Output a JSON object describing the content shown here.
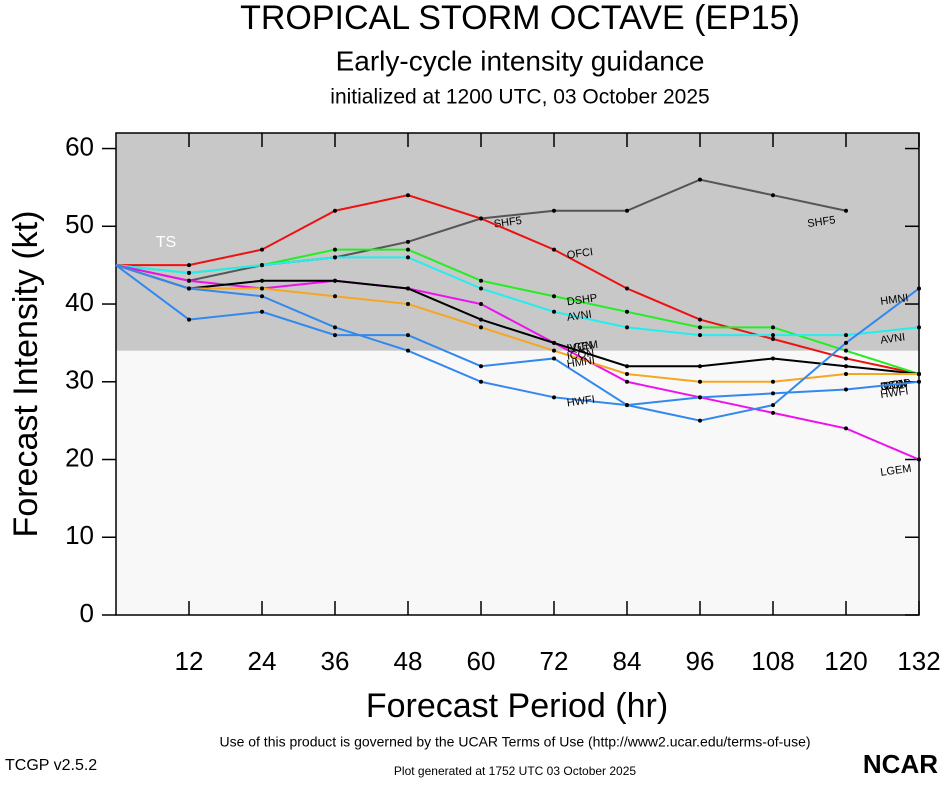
{
  "chart_data": {
    "type": "line",
    "title": "TROPICAL STORM OCTAVE (EP15)",
    "subtitle": "Early-cycle intensity guidance",
    "initialized": "initialized at 1200 UTC, 03 October 2025",
    "x_label": "Forecast Period (hr)",
    "y_label": "Forecast Intensity (kt)",
    "band": {
      "from": 34,
      "to": 62,
      "label": "TS",
      "color": "#c8c8c8"
    },
    "background": "#f8f8f8",
    "x": [
      0,
      12,
      24,
      36,
      48,
      60,
      72,
      84,
      96,
      108,
      120,
      132
    ],
    "xlim": [
      0,
      132
    ],
    "xticks": [
      12,
      24,
      36,
      48,
      60,
      72,
      84,
      96,
      108,
      120,
      132
    ],
    "ylim": [
      0,
      62
    ],
    "yticks": [
      0,
      10,
      20,
      30,
      40,
      50,
      60
    ],
    "series": [
      {
        "name": "SHF5",
        "color": "#555555",
        "values": [
          45,
          43,
          45,
          46,
          48,
          51,
          52,
          52,
          56,
          54,
          52,
          null
        ]
      },
      {
        "name": "OFCI",
        "color": "#ee1111",
        "values": [
          45,
          45,
          47,
          52,
          54,
          51,
          47,
          42,
          38,
          35.5,
          33,
          31
        ]
      },
      {
        "name": "DSHP",
        "color": "#22ee22",
        "values": [
          45,
          44,
          45,
          47,
          47,
          43,
          41,
          39,
          37,
          37,
          34,
          31
        ]
      },
      {
        "name": "AVNI",
        "color": "#22eeee",
        "values": [
          45,
          44,
          45,
          46,
          46,
          42,
          39,
          37,
          36,
          36,
          36,
          37
        ]
      },
      {
        "name": "LGEM",
        "color": "#ee11ee",
        "values": [
          45,
          43,
          42,
          43,
          42,
          40,
          35,
          30,
          28,
          26,
          24,
          20
        ]
      },
      {
        "name": "IVCN",
        "color": "#000000",
        "values": [
          45,
          42,
          43,
          43,
          42,
          38,
          35,
          32,
          32,
          33,
          32,
          31
        ]
      },
      {
        "name": "ICON",
        "color": "#f5a623",
        "values": [
          45,
          42,
          42,
          41,
          40,
          37,
          34,
          31,
          30,
          30,
          31,
          31
        ]
      },
      {
        "name": "HMNI",
        "color": "#3388ee",
        "values": [
          45,
          38,
          39,
          36,
          36,
          32,
          33,
          27,
          25,
          27,
          35,
          42
        ]
      },
      {
        "name": "HWFI",
        "color": "#3388ee",
        "values": [
          45,
          42,
          41,
          37,
          34,
          30,
          28,
          27,
          28,
          28.5,
          29,
          30
        ]
      }
    ],
    "terms": "Use of this product is governed by the UCAR Terms of Use (http://www2.ucar.edu/terms-of-use)",
    "version": "TCGP v2.5.2",
    "generated": "Plot generated at 1752 UTC   03 October 2025",
    "logo": "NCAR"
  }
}
